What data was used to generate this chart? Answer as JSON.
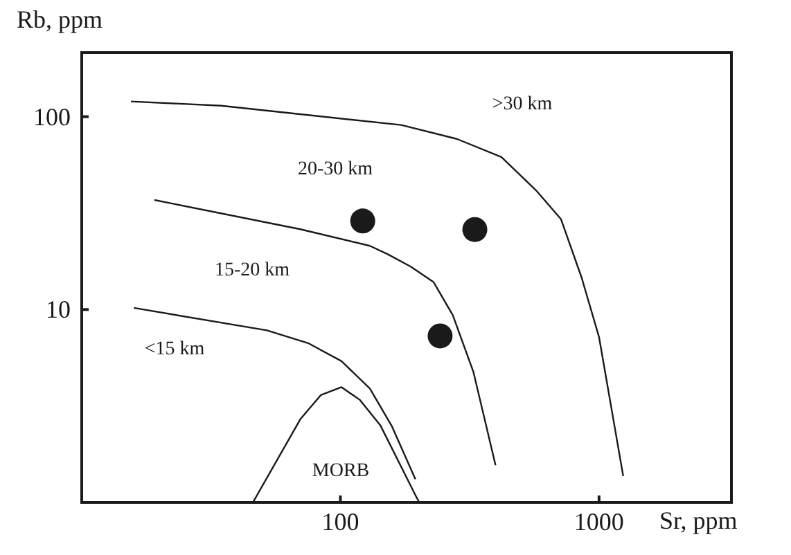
{
  "chart_data": {
    "type": "line",
    "xlabel": "Sr, ppm",
    "ylabel": "Rb, ppm",
    "log": "xy",
    "xlim": [
      10,
      3250
    ],
    "ylim": [
      1,
      215
    ],
    "xticks": [
      100,
      1000
    ],
    "yticks": [
      10,
      100
    ],
    "grid": false,
    "line_style": "solid",
    "series": [
      {
        "color": "#1a1a1a",
        "x": [
          15.5,
          34.6,
          172,
          282,
          419,
          570,
          713,
          857,
          1000,
          1240
        ],
        "values": [
          120,
          114,
          90.6,
          76.7,
          61.8,
          41.6,
          29.4,
          14.6,
          7.2,
          1.37
        ]
      },
      {
        "color": "#1a1a1a",
        "x": [
          19.1,
          70,
          130,
          152,
          187,
          229,
          272,
          327,
          398
        ],
        "values": [
          37,
          26.1,
          21.4,
          19.4,
          16.7,
          13.9,
          9.35,
          4.74,
          1.56
        ]
      },
      {
        "color": "#1a1a1a",
        "x": [
          15.9,
          52,
          75,
          101,
          130,
          158,
          195
        ],
        "values": [
          10.2,
          7.8,
          6.7,
          5.4,
          3.9,
          2.49,
          1.32
        ]
      },
      {
        "color": "#1a1a1a",
        "x": [
          45.9,
          70,
          84,
          101,
          119,
          143,
          195,
          202
        ],
        "values": [
          1,
          2.7,
          3.6,
          3.96,
          3.4,
          2.5,
          1.09,
          1
        ]
      },
      {
        "type": "scatter",
        "color": "#1a1a1a",
        "marker": "circle",
        "x": [
          122,
          331,
          243
        ],
        "values": [
          28.8,
          26,
          7.3
        ]
      }
    ],
    "annotations": [
      ">30 km",
      "20-30 km",
      "15-20 km",
      "<15 km",
      "MORB"
    ]
  }
}
